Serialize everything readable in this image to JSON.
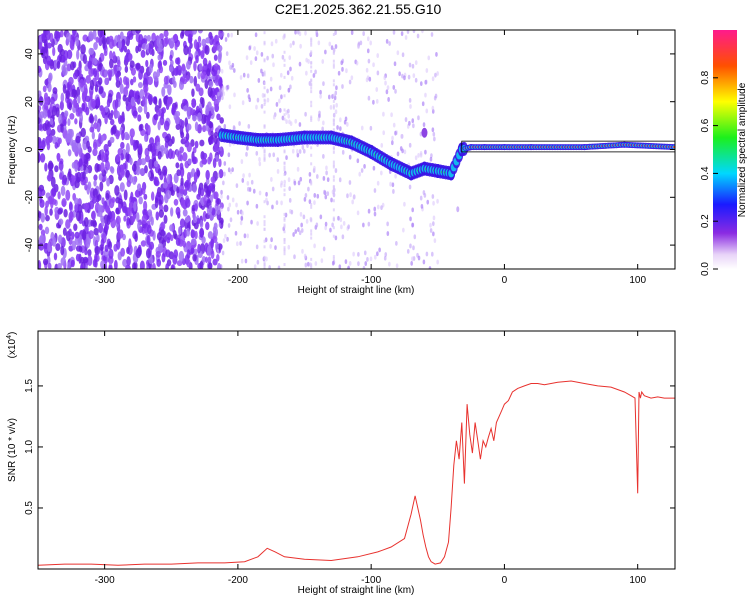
{
  "title": "C2E1.2025.362.21.55.G10",
  "spectrogram": {
    "xlabel": "Height of straight line (km)",
    "ylabel": "Frequency (Hz)",
    "xlim": [
      -350,
      128
    ],
    "ylim": [
      -50,
      50
    ],
    "xticks": [
      "-300",
      "-200",
      "-100",
      "0",
      "100"
    ],
    "xtick_values": [
      -300,
      -200,
      -100,
      0,
      100
    ],
    "yticks": [
      "-40",
      "-20",
      "0",
      "20",
      "40"
    ],
    "ytick_values": [
      -40,
      -20,
      0,
      20,
      40
    ],
    "colorbar": {
      "label": "Normalized spectral amplitude",
      "ticks": [
        "0.0",
        "0.2",
        "0.4",
        "0.6",
        "0.8"
      ],
      "tick_values": [
        0.0,
        0.2,
        0.4,
        0.6,
        0.8
      ],
      "range": [
        0,
        1
      ]
    }
  },
  "chart_data": {
    "type": "line",
    "title": "C2E1.2025.362.21.55.G10",
    "xlabel": "Height of straight line (km)",
    "ylabel": "SNR (10 * v/v)",
    "yscale_label": "(x10",
    "yscale_exp": "4",
    "yscale_close": ")",
    "xlim": [
      -350,
      128
    ],
    "ylim": [
      0,
      1.95
    ],
    "xticks": [
      "-300",
      "-200",
      "-100",
      "0",
      "100"
    ],
    "xtick_values": [
      -300,
      -200,
      -100,
      0,
      100
    ],
    "yticks": [
      "0.5",
      "1.0",
      "1.5"
    ],
    "ytick_values": [
      0.5,
      1.0,
      1.5
    ],
    "color": "#e8322e",
    "series": [
      {
        "x": [
          -350,
          -330,
          -310,
          -290,
          -270,
          -250,
          -230,
          -210,
          -195,
          -185,
          -178,
          -172,
          -165,
          -150,
          -130,
          -110,
          -95,
          -85,
          -75,
          -70,
          -67,
          -65,
          -63,
          -61,
          -59,
          -57,
          -55,
          -52,
          -48,
          -45,
          -42,
          -40,
          -38,
          -36,
          -34,
          -32,
          -30,
          -28,
          -26,
          -24,
          -22,
          -20,
          -18,
          -16,
          -14,
          -12,
          -10,
          -8,
          -6,
          -4,
          -2,
          0,
          3,
          6,
          10,
          15,
          20,
          25,
          30,
          40,
          50,
          60,
          70,
          80,
          90,
          95,
          98,
          100,
          101,
          102,
          103,
          105,
          110,
          115,
          120,
          128
        ],
        "y": [
          0.03,
          0.04,
          0.04,
          0.03,
          0.04,
          0.04,
          0.05,
          0.05,
          0.06,
          0.1,
          0.17,
          0.14,
          0.1,
          0.08,
          0.07,
          0.1,
          0.14,
          0.18,
          0.25,
          0.45,
          0.6,
          0.5,
          0.4,
          0.28,
          0.18,
          0.1,
          0.06,
          0.04,
          0.05,
          0.1,
          0.22,
          0.5,
          0.85,
          1.05,
          0.9,
          1.2,
          0.7,
          1.35,
          1.1,
          0.95,
          1.2,
          1.05,
          0.9,
          1.05,
          1.0,
          1.08,
          1.15,
          1.05,
          1.2,
          1.25,
          1.3,
          1.35,
          1.38,
          1.45,
          1.48,
          1.5,
          1.52,
          1.52,
          1.51,
          1.53,
          1.54,
          1.52,
          1.5,
          1.49,
          1.45,
          1.42,
          1.4,
          0.62,
          1.45,
          1.4,
          1.45,
          1.42,
          1.4,
          1.41,
          1.4,
          1.4
        ]
      }
    ]
  }
}
